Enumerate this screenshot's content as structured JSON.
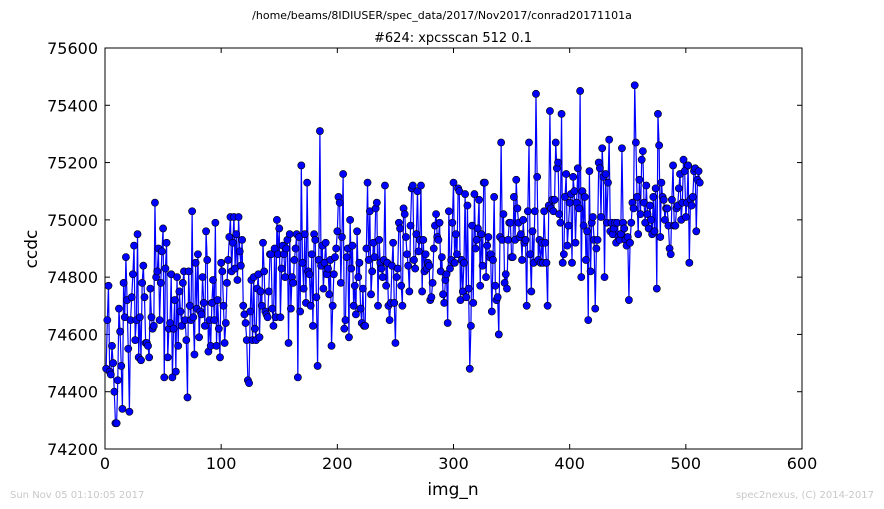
{
  "figure": {
    "path": "/home/beams/8IDIUSER/spec_data/2017/Nov2017/conrad20171101a",
    "footer_left": "Sun Nov 05 01:10:05 2017",
    "footer_right": "spec2nexus, (C) 2014-2017"
  },
  "chart_data": {
    "type": "line",
    "title": "#624: xpcsscan 512 0.1",
    "xlabel": "img_n",
    "ylabel": "ccdc",
    "xlim": [
      0,
      600
    ],
    "ylim": [
      74200,
      75600
    ],
    "xticks": [
      "0",
      "100",
      "200",
      "300",
      "400",
      "500",
      "600"
    ],
    "yticks": [
      "74200",
      "74400",
      "74600",
      "74800",
      "75000",
      "75200",
      "75400",
      "75600"
    ],
    "grid": false,
    "line_color": "#0000ff",
    "marker": "circle",
    "series": [
      {
        "x0": 1,
        "dx": 1,
        "values": [
          74480,
          74650,
          74770,
          74470,
          74460,
          74560,
          74500,
          74400,
          74290,
          74290,
          74440,
          74690,
          74610,
          74490,
          74340,
          74780,
          74660,
          74870,
          74720,
          74550,
          74330,
          74650,
          74730,
          74810,
          74910,
          74580,
          74650,
          74950,
          74520,
          74660,
          74510,
          74780,
          74840,
          74730,
          74570,
          74570,
          74560,
          74520,
          74760,
          74660,
          74620,
          74630,
          75060,
          74800,
          74820,
          74900,
          74650,
          74780,
          74890,
          74970,
          74450,
          74830,
          74920,
          74520,
          74620,
          74640,
          74810,
          74450,
          74620,
          74720,
          74470,
          74800,
          74560,
          74750,
          74680,
          74630,
          74780,
          74820,
          74650,
          74580,
          74380,
          74820,
          74700,
          74650,
          75030,
          74660,
          74530,
          74850,
          74690,
          74880,
          74590,
          74680,
          74670,
          74800,
          74710,
          74630,
          74960,
          74860,
          74540,
          74650,
          74560,
          74710,
          74790,
          74650,
          74990,
          74560,
          74720,
          74620,
          74520,
          74850,
          74820,
          74700,
          74570,
          74640,
          74780,
          74860,
          74940,
          75010,
          74820,
          74920,
          75010,
          74830,
          74950,
          74790,
          75010,
          74890,
          74840,
          74930,
          74700,
          74670,
          74640,
          74580,
          74440,
          74430,
          74680,
          74790,
          74580,
          74800,
          74620,
          74580,
          74760,
          74810,
          74590,
          74750,
          74700,
          74920,
          74820,
          74680,
          74670,
          74660,
          74750,
          74880,
          74880,
          74690,
          74630,
          74900,
          74660,
          75000,
          74880,
          74970,
          74660,
          74830,
          74910,
          74880,
          74800,
          74900,
          74930,
          74570,
          74950,
          74690,
          74800,
          74780,
          74860,
          74900,
          74950,
          74450,
          74940,
          74680,
          75190,
          74850,
          74760,
          74950,
          74710,
          75130,
          74820,
          74810,
          74700,
          74880,
          74630,
          74950,
          74930,
          74730,
          74490,
          74860,
          75310,
          74840,
          74910,
          74760,
          74850,
          74920,
          74810,
          74830,
          74740,
          74860,
          74560,
          74700,
          74810,
          74870,
          74900,
          74960,
          75080,
          75060,
          74780,
          74940,
          75160,
          74620,
          74650,
          74870,
          74900,
          74590,
          75000,
          74830,
          74910,
          74700,
          74770,
          74670,
          74960,
          74800,
          74850,
          74690,
          74640,
          74760,
          74630,
          74630,
          74900,
          75130,
          74860,
          75030,
          74740,
          74820,
          74920,
          74870,
          75040,
          75060,
          74700,
          74930,
          74850,
          74830,
          74800,
          74860,
          75120,
          74770,
          74850,
          74700,
          74650,
          74710,
          74840,
          74920,
          74710,
          74570,
          74800,
          74830,
          74990,
          74970,
          74770,
          74700,
          75040,
          75020,
          74940,
          74880,
          74840,
          74750,
          74980,
          75110,
          75120,
          74860,
          74830,
          74950,
          75100,
          74890,
          74930,
          75120,
          74750,
          74930,
          74820,
          74880,
          74830,
          74850,
          74840,
          74720,
          74730,
          74780,
          74900,
          74980,
          75020,
          74940,
          74930,
          74990,
          74820,
          74870,
          74740,
          74710,
          74790,
          74810,
          74640,
          75030,
          74830,
          74860,
          74990,
          75130,
          74850,
          74950,
          74880,
          75110,
          75100,
          74720,
          74860,
          74750,
          74850,
          75090,
          74730,
          75050,
          74760,
          74480,
          74630,
          74980,
          74710,
          75090,
          74900,
          74930,
          74970,
          75070,
          74770,
          74950,
          74840,
          75130,
          75130,
          74800,
          74910,
          74940,
          74870,
          74880,
          74680,
          74860,
          75080,
          74770,
          74720,
          74730,
          74600,
          74940,
          75270,
          74930,
          75020,
          74780,
          74810,
          74760,
          74930,
          74990,
          74990,
          74870,
          74870,
          75080,
          74930,
          75140,
          75040,
          74990,
          74940,
          74950,
          74860,
          75000,
          74920,
          74930,
          74700,
          75030,
          75270,
          74880,
          74750,
          74960,
          74850,
          75030,
          75440,
          75150,
          74860,
          74930,
          74850,
          74920,
          74850,
          75030,
          74920,
          74850,
          74700,
          75050,
          75380,
          75040,
          75070,
          75030,
          75070,
          75270,
          75180,
          75200,
          75020,
          74990,
          75370,
          74850,
          74880,
          75080,
          75160,
          74910,
          74980,
          75060,
          75090,
          74850,
          75150,
          75100,
          74920,
          75060,
          75180,
          75040,
          75450,
          74800,
          75100,
          74980,
          75080,
          74860,
          74960,
          74650,
          75170,
          74820,
          74990,
          75010,
          74930,
          74690,
          74900,
          74930,
          75200,
          75180,
          75010,
          75250,
          75150,
          74800,
          75160,
          74990,
          75130,
          75280,
          74960,
          74990,
          74950,
          74970,
          74990,
          74920,
          74990,
          74940,
          74930,
          74950,
          75250,
          74990,
          74970,
          74930,
          74910,
          74940,
          74720,
          74920,
          74990,
          75060,
          75040,
          75470,
          75270,
          75080,
          74950,
          75140,
          75020,
          75210,
          75240,
          75060,
          74990,
          75120,
          75020,
          74970,
          75050,
          75000,
          74950,
          75080,
          74960,
          75110,
          74760,
          75370,
          75260,
          74940,
          75130,
          75080,
          75070,
          75000,
          75040,
          75040,
          74980,
          74900,
          74880,
          75070,
          75190,
          74980,
          74980,
          75040,
          75050,
          75110,
          75160,
          75000,
          75060,
          75210,
          75170,
          75010,
          75060,
          75190,
          74850,
          75070,
          75050,
          75080,
          75170,
          75180,
          74960,
          75140,
          75170,
          75130
        ]
      }
    ]
  }
}
